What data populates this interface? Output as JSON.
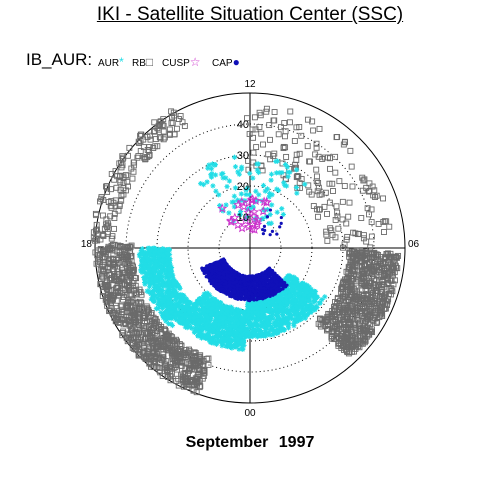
{
  "header": {
    "title": "IKI - Satellite Situation Center (SSC)"
  },
  "legend": {
    "prefix": "IB_AUR:",
    "items": [
      {
        "label": "AUR",
        "marker": "asterisk",
        "color": "#22dde6",
        "glyph": "*"
      },
      {
        "label": "RB",
        "marker": "square",
        "color": "#6b6b6b",
        "glyph": "□"
      },
      {
        "label": "CUSP",
        "marker": "star",
        "color": "#cc33cc",
        "glyph": "☆"
      },
      {
        "label": "CAP",
        "marker": "dot",
        "color": "#1010b8",
        "glyph": "●"
      }
    ]
  },
  "footer": {
    "date": "September 1997"
  },
  "chart_data": {
    "type": "scatter",
    "projection": "polar",
    "grid": true,
    "angular_axis": {
      "labels": [
        "12",
        "06",
        "00",
        "18"
      ],
      "label_hours": [
        12,
        6,
        0,
        18
      ]
    },
    "radial_axis": {
      "tick_labels": [
        "10",
        "20",
        "30",
        "40"
      ],
      "values": [
        10,
        20,
        30,
        40
      ],
      "max": 50,
      "dotted_circles": true
    },
    "series": [
      {
        "name": "RB",
        "marker": "square",
        "color": "#6b6b6b",
        "regions": [
          {
            "mlt_start": 17.9,
            "mlt_end": 22.7,
            "r_min": 38,
            "r_max": 50,
            "count": 760
          },
          {
            "mlt_start": 13.8,
            "mlt_end": 17.9,
            "r_min": 44,
            "r_max": 51,
            "count": 150
          },
          {
            "mlt_start": 2.8,
            "mlt_end": 5.9,
            "r_min": 32,
            "r_max": 48,
            "count": 700
          },
          {
            "mlt_start": 6.0,
            "mlt_end": 12.1,
            "r_min": 24,
            "r_max": 46,
            "count": 170
          }
        ]
      },
      {
        "name": "AUR",
        "marker": "asterisk",
        "color": "#22dde6",
        "regions": [
          {
            "mlt_start": 18.0,
            "mlt_end": 21.0,
            "r_min": 26,
            "r_max": 36,
            "count": 550
          },
          {
            "mlt_start": 21.0,
            "mlt_end": 23.8,
            "r_min": 20,
            "r_max": 33,
            "count": 650
          },
          {
            "mlt_start": 23.8,
            "mlt_end": 3.8,
            "r_min": 15,
            "r_max": 29,
            "count": 800
          },
          {
            "mlt_start": 9.0,
            "mlt_end": 14.5,
            "r_min": 9,
            "r_max": 30,
            "count": 110
          }
        ]
      },
      {
        "name": "CAP",
        "marker": "dot",
        "color": "#1010b8",
        "regions": [
          {
            "mlt_start": 19.5,
            "mlt_end": 3.0,
            "r_min": 9,
            "r_max": 17,
            "count": 1500
          },
          {
            "mlt_start": 7.5,
            "mlt_end": 10.5,
            "r_min": 6,
            "r_max": 16,
            "count": 12
          }
        ]
      },
      {
        "name": "CUSP",
        "marker": "star",
        "color": "#cc33cc",
        "regions": [
          {
            "mlt_start": 10.0,
            "mlt_end": 14.5,
            "r_min": 6,
            "r_max": 16,
            "count": 28
          }
        ]
      }
    ]
  }
}
